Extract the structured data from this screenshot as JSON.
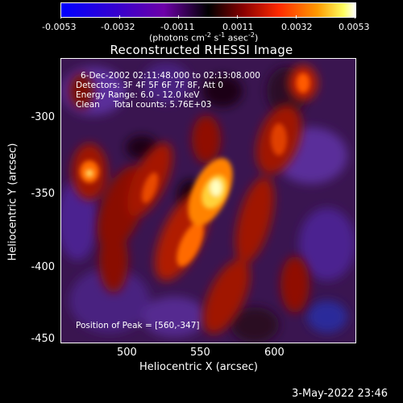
{
  "colorbar": {
    "ticks": [
      "-0.0053",
      "-0.0032",
      "-0.0011",
      "0.0011",
      "0.0032",
      "0.0053"
    ],
    "units_prefix": "(photons cm",
    "units_exp1": "-2",
    "units_mid": " s",
    "units_exp2": "-1",
    "units_mid2": " asec",
    "units_exp3": "-2",
    "units_suffix": ")"
  },
  "title": "Reconstructed RHESSI Image",
  "annotations": {
    "time_range": "6-Dec-2002 02:11:48.000 to 02:13:08.000",
    "detectors": "Detectors: 3F 4F 5F 6F 7F 8F, Att 0",
    "energy": "Energy Range: 6.0 - 12.0 keV",
    "clean": "Clean     Total counts: 5.76E+03",
    "peak": "Position of Peak = [560,-347]"
  },
  "axes": {
    "xlabel": "Heliocentric X (arcsec)",
    "ylabel": "Heliocentric Y (arcsec)",
    "xticks": [
      "500",
      "550",
      "600"
    ],
    "yticks": [
      "-300",
      "-350",
      "-400",
      "-450"
    ]
  },
  "footer": "3-May-2022 23:46"
}
